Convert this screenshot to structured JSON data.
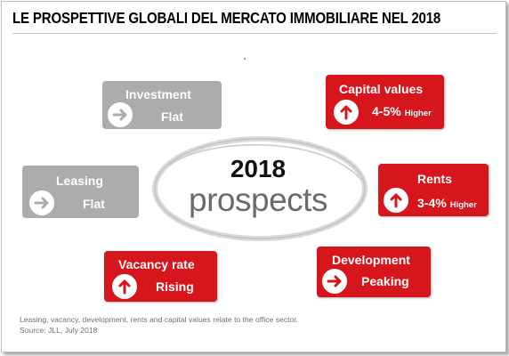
{
  "title": "LE PROSPETTIVE GLOBALI DEL MERCATO IMMOBILIARE NEL 2018",
  "center": {
    "year": "2018",
    "word": "prospects"
  },
  "cards": {
    "investment": {
      "label": "Investment",
      "value": "Flat",
      "trend": "flat",
      "color": "#acacac"
    },
    "leasing": {
      "label": "Leasing",
      "value": "Flat",
      "trend": "flat",
      "color": "#acacac"
    },
    "vacancy": {
      "label": "Vacancy rate",
      "value": "Rising",
      "trend": "up",
      "color": "#d7151d"
    },
    "capital": {
      "label": "Capital values",
      "value": "4-5%",
      "qualifier": "Higher",
      "trend": "up",
      "color": "#d7151d"
    },
    "rents": {
      "label": "Rents",
      "value": "3-4%",
      "qualifier": "Higher",
      "trend": "up",
      "color": "#d7151d"
    },
    "development": {
      "label": "Development",
      "value": "Peaking",
      "trend": "flat",
      "color": "#d7151d"
    }
  },
  "footnote": "Leasing, vacancy, development, rents and capital values relate to the office sector.",
  "source": "Source: JLL, July 2018"
}
